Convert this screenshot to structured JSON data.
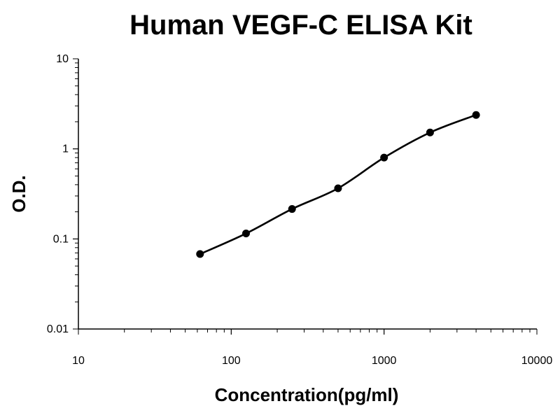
{
  "chart_data": {
    "type": "scatter",
    "title": "Human VEGF-C ELISA Kit",
    "xlabel": "Concentration(pg/ml)",
    "ylabel": "O.D.",
    "x_scale": "log",
    "y_scale": "log",
    "xlim": [
      10,
      10000
    ],
    "ylim": [
      0.01,
      10
    ],
    "x_ticks": [
      "10",
      "100",
      "1000",
      "10000"
    ],
    "y_ticks": [
      "0.01",
      "0.1",
      "1",
      "10"
    ],
    "grid": false,
    "legend": "none",
    "series": [
      {
        "x": [
          62.5,
          125,
          250,
          500,
          1000,
          2000,
          4000
        ],
        "y": [
          0.068,
          0.115,
          0.215,
          0.365,
          0.8,
          1.52,
          2.38
        ]
      }
    ],
    "colors": {
      "marker": "#000000",
      "line": "#000000",
      "axis": "#000000"
    }
  }
}
